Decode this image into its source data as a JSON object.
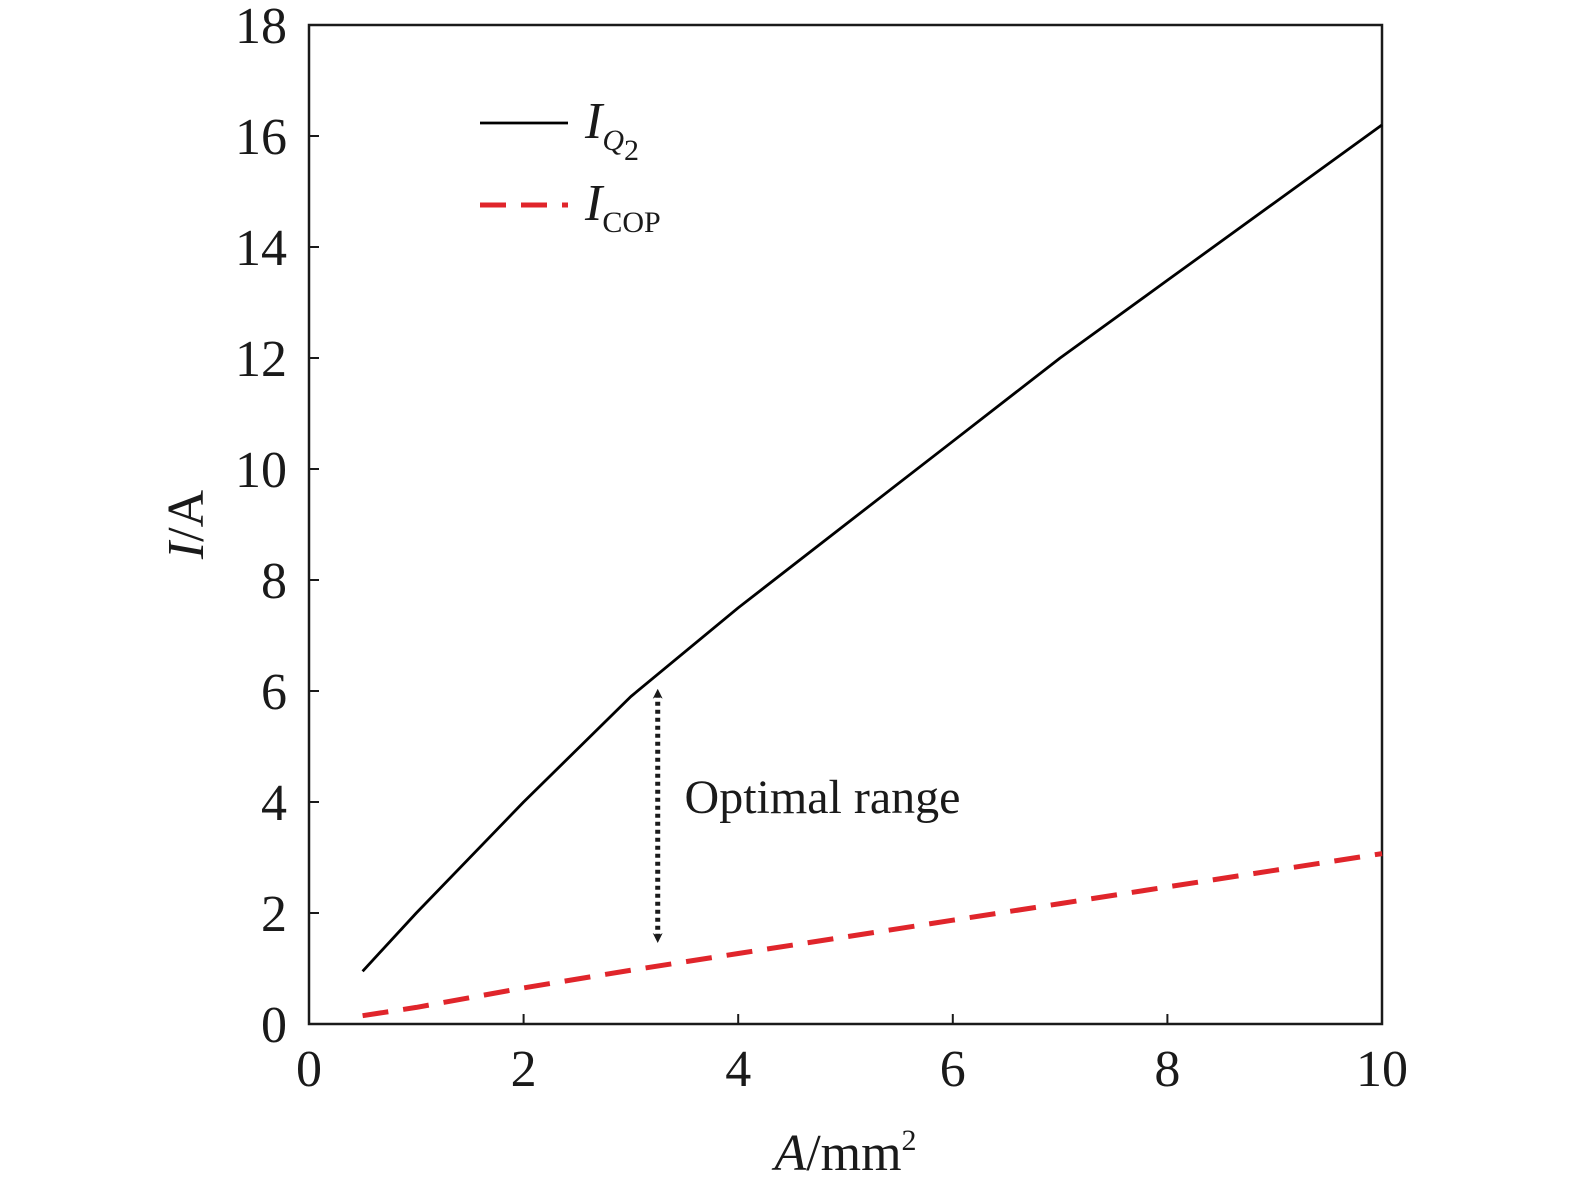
{
  "chart_data": {
    "type": "line",
    "xlabel": {
      "var": "A",
      "unit": "/mm",
      "sup": "2"
    },
    "ylabel": {
      "var": "I",
      "unit": "/A"
    },
    "xlim": [
      0,
      10
    ],
    "ylim": [
      0,
      18
    ],
    "xticks": [
      0,
      2,
      4,
      6,
      8,
      10
    ],
    "yticks": [
      0,
      2,
      4,
      6,
      8,
      10,
      12,
      14,
      16,
      18
    ],
    "grid": false,
    "legend_position": "top-left",
    "series": [
      {
        "name": "IQ2",
        "legend": {
          "var": "I",
          "sub": "Q",
          "subsub": "2"
        },
        "color": "#000000",
        "style": "solid",
        "x": [
          0.5,
          1,
          2,
          3,
          4,
          5,
          6,
          7,
          8,
          9,
          10
        ],
        "y": [
          0.95,
          2.0,
          4.0,
          5.9,
          7.5,
          9.0,
          10.5,
          12.0,
          13.4,
          14.8,
          16.2
        ]
      },
      {
        "name": "ICOP",
        "legend": {
          "var": "I",
          "sub": "COP"
        },
        "color": "#e0252b",
        "style": "dashed",
        "x": [
          0.5,
          1,
          2,
          3,
          4,
          5,
          6,
          7,
          8,
          9,
          10
        ],
        "y": [
          0.15,
          0.3,
          0.65,
          0.97,
          1.27,
          1.57,
          1.87,
          2.17,
          2.47,
          2.77,
          3.07
        ]
      }
    ],
    "annotations": [
      {
        "text": "Optimal range",
        "arrow": {
          "x": 3.25,
          "y_from": 1.55,
          "y_to": 5.95,
          "style": "dotted",
          "double_headed": true
        },
        "label_at": {
          "x": 3.5,
          "y": 3.8
        }
      }
    ]
  }
}
